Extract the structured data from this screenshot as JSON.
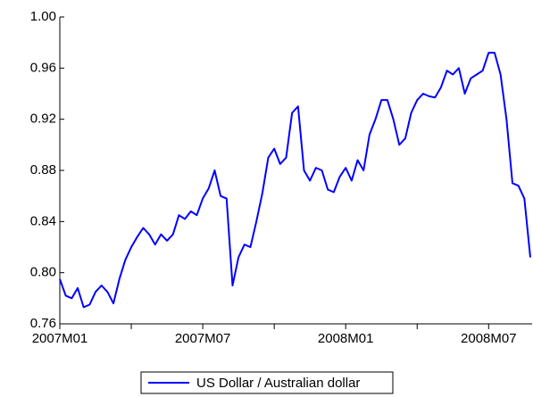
{
  "chart_data": {
    "type": "line",
    "categories": [
      "2007M01",
      null,
      null,
      null,
      null,
      null,
      null,
      null,
      null,
      null,
      null,
      null,
      null,
      null,
      null,
      null,
      null,
      null,
      null,
      null,
      null,
      null,
      null,
      null,
      "2007M07",
      null,
      null,
      null,
      null,
      null,
      null,
      null,
      null,
      null,
      null,
      null,
      null,
      null,
      null,
      null,
      null,
      null,
      null,
      null,
      null,
      null,
      null,
      null,
      "2008M01",
      null,
      null,
      null,
      null,
      null,
      null,
      null,
      null,
      null,
      null,
      null,
      null,
      null,
      null,
      null,
      null,
      null,
      null,
      null,
      null,
      null,
      null,
      null,
      "2008M07",
      null,
      null,
      null,
      null,
      null,
      null,
      null
    ],
    "series": [
      {
        "name": "US Dollar / Australian dollar",
        "color": "#0000ff",
        "values": [
          0.795,
          0.782,
          0.78,
          0.788,
          0.773,
          0.775,
          0.785,
          0.79,
          0.785,
          0.776,
          0.795,
          0.81,
          0.82,
          0.828,
          0.835,
          0.83,
          0.822,
          0.83,
          0.825,
          0.83,
          0.845,
          0.842,
          0.848,
          0.845,
          0.858,
          0.866,
          0.88,
          0.86,
          0.858,
          0.79,
          0.812,
          0.822,
          0.82,
          0.84,
          0.862,
          0.89,
          0.897,
          0.885,
          0.89,
          0.925,
          0.93,
          0.88,
          0.872,
          0.882,
          0.88,
          0.865,
          0.863,
          0.875,
          0.882,
          0.872,
          0.888,
          0.88,
          0.908,
          0.92,
          0.935,
          0.935,
          0.92,
          0.9,
          0.905,
          0.925,
          0.935,
          0.94,
          0.938,
          0.937,
          0.945,
          0.958,
          0.955,
          0.96,
          0.94,
          0.952,
          0.955,
          0.958,
          0.972,
          0.972,
          0.955,
          0.92,
          0.87,
          0.868,
          0.858,
          0.812
        ]
      }
    ],
    "ylim": [
      0.76,
      1.0
    ],
    "yticks": [
      0.76,
      {
        "value": 0.8,
        "label": "0.80"
      },
      0.84,
      0.88,
      0.92,
      0.96,
      {
        "value": 1.0,
        "label": "1.00"
      }
    ],
    "legend": "bottom"
  }
}
